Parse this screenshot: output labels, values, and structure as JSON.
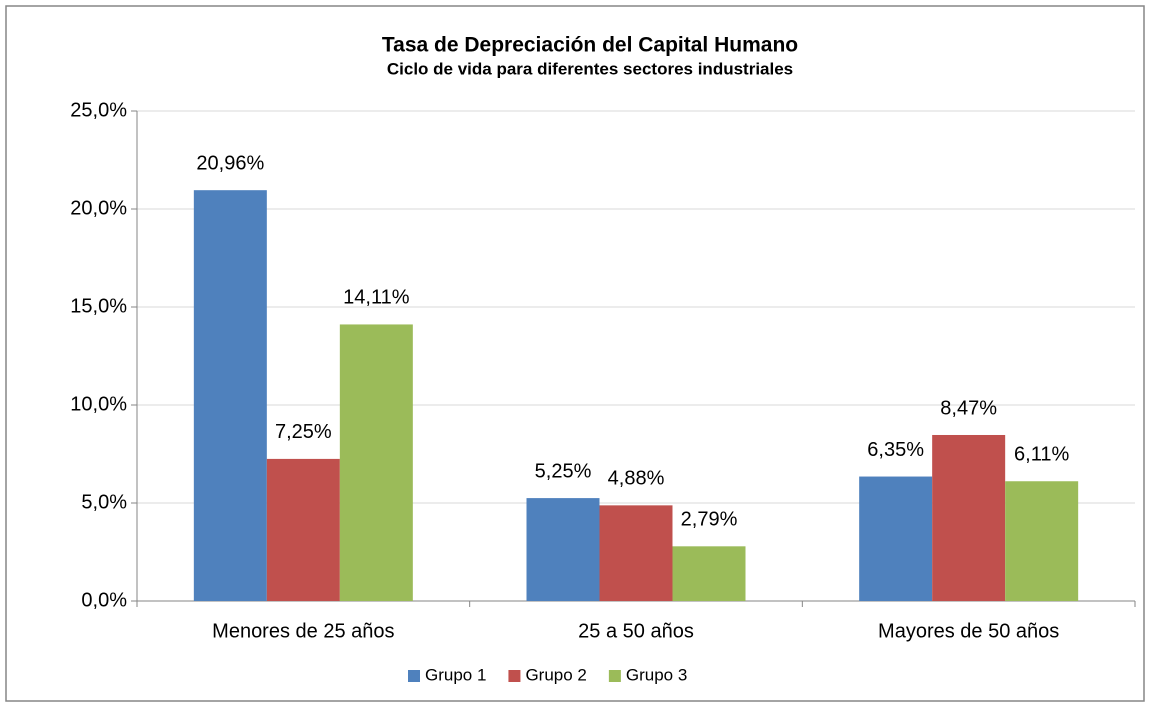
{
  "chart_data": {
    "type": "bar",
    "title": "Tasa de Depreciación del Capital Humano",
    "subtitle": "Ciclo de vida para diferentes sectores industriales",
    "categories": [
      "Menores de 25 años",
      "25 a 50 años",
      "Mayores de 50 años"
    ],
    "series": [
      {
        "name": "Grupo 1",
        "color": "#4f81bd",
        "values": [
          20.96,
          5.25,
          6.35
        ],
        "value_labels": [
          "20,96%",
          "5,25%",
          "6,35%"
        ]
      },
      {
        "name": "Grupo 2",
        "color": "#c0504d",
        "values": [
          7.25,
          4.88,
          8.47
        ],
        "value_labels": [
          "7,25%",
          "4,88%",
          "8,47%"
        ]
      },
      {
        "name": "Grupo 3",
        "color": "#9bbb59",
        "values": [
          14.11,
          2.79,
          6.11
        ],
        "value_labels": [
          "14,11%",
          "2,79%",
          "6,11%"
        ]
      }
    ],
    "ylim": [
      0,
      25
    ],
    "yticks": [
      {
        "value": 0,
        "label": "0,0%"
      },
      {
        "value": 5,
        "label": "5,0%"
      },
      {
        "value": 10,
        "label": "10,0%"
      },
      {
        "value": 15,
        "label": "15,0%"
      },
      {
        "value": 20,
        "label": "20,0%"
      },
      {
        "value": 25,
        "label": "25,0%"
      }
    ],
    "grid": true,
    "legend": "bottom"
  }
}
